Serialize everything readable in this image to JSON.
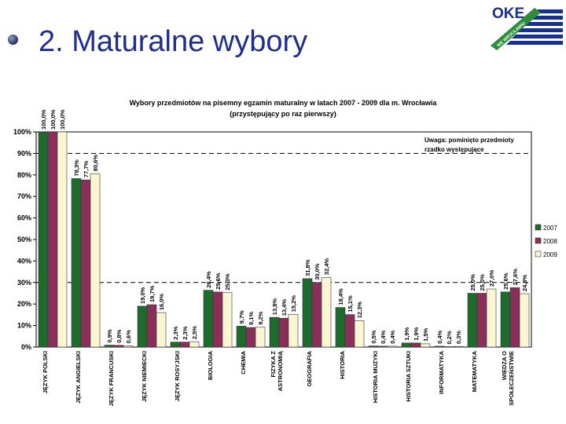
{
  "slide": {
    "bullet": "●",
    "title": "2. Maturalne wybory",
    "logo_text": "OKE",
    "logo_ribbon": "WE WROCŁAWIU"
  },
  "chart_data": {
    "type": "bar",
    "title": "Wybory przedmiotów na pisemny egzamin maturalny w latach 2007 - 2009 dla m. Wrocławia",
    "subtitle": "(przystępujący po raz pierwszy)",
    "annotation": [
      "Uwaga: pominięto przedmioty",
      "rzadko występujące"
    ],
    "xlabel": "",
    "ylabel": "",
    "ylim": [
      0,
      100
    ],
    "yticks": [
      "0%",
      "10%",
      "20%",
      "30%",
      "40%",
      "50%",
      "60%",
      "70%",
      "80%",
      "90%",
      "100%"
    ],
    "reference_lines": [
      90,
      30
    ],
    "legend_position": "right",
    "categories": [
      "JĘZYK POLSKI",
      "JĘZYK ANGIELSKI",
      "JĘZYK FRANCUSKI",
      "JĘZYK NIEMIECKI",
      "JĘZYK ROSYJSKI",
      "BIOLOGIA",
      "CHEMIA",
      "FIZYKA Z ASTRONOMIĄ",
      "GEOGRAFIA",
      "HISTORIA",
      "HISTORIA MUZYKI",
      "HISTORIA SZTUKI",
      "INFORMATYKA",
      "MATEMATYKA",
      "WIEDZA O SPOŁECZEŃSTWIE"
    ],
    "series": [
      {
        "name": "2007",
        "color": "#1e6b2e",
        "values": [
          100.0,
          78.3,
          0.9,
          19.0,
          2.3,
          26.4,
          9.7,
          13.8,
          31.8,
          18.4,
          0.5,
          1.9,
          0.4,
          25.0,
          25.6
        ],
        "labels": [
          "100,0%",
          "78,3%",
          "0,9%",
          "19,0%",
          "2,3%",
          "26,4%",
          "9,7%",
          "13,8%",
          "31,8%",
          "18,4%",
          "0,5%",
          "1,9%",
          "0,4%",
          "25,0%",
          "25,6%"
        ]
      },
      {
        "name": "2008",
        "color": "#8b2f5a",
        "values": [
          100.0,
          77.7,
          0.8,
          19.7,
          2.3,
          25.6,
          9.1,
          13.4,
          30.0,
          15.1,
          0.4,
          1.9,
          0.2,
          25.0,
          27.6
        ],
        "labels": [
          "100,0%",
          "77,7%",
          "0,8%",
          "19,7%",
          "2,3%",
          "25,6%",
          "9,1%",
          "13,4%",
          "30,0%",
          "15,1%",
          "0,4%",
          "1,9%",
          "0,2%",
          "25,0%",
          "27,6%"
        ]
      },
      {
        "name": "2009",
        "color": "#fbf6d2",
        "values": [
          100.0,
          80.6,
          0.6,
          16.0,
          2.5,
          25.3,
          9.2,
          15.2,
          32.4,
          12.3,
          0.4,
          1.5,
          0.3,
          27.0,
          24.8
        ],
        "labels": [
          "100,0%",
          "80,6%",
          "0,6%",
          "16,0%",
          "2,5%",
          "25,3%",
          "9,2%",
          "15,2%",
          "32,4%",
          "12,3%",
          "0,4%",
          "1,5%",
          "0,3%",
          "27,0%",
          "24,8%"
        ]
      }
    ]
  }
}
